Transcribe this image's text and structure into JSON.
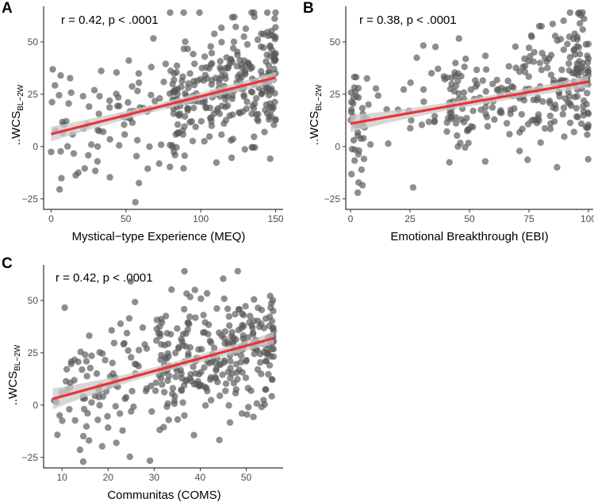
{
  "chart_data": [
    {
      "panel": "A",
      "type": "scatter",
      "annotation": "r = 0.42, p < .0001",
      "xlabel": "Mystical−type Experience (MEQ)",
      "ylabel_main": "..WCS",
      "ylabel_sub": "BL−2W",
      "xlim": [
        -5,
        155
      ],
      "ylim": [
        -30,
        67
      ],
      "xticks": [
        0,
        50,
        100,
        150
      ],
      "xticklabels": [
        "0",
        "50",
        "100",
        "150"
      ],
      "yticks": [
        -25,
        0,
        25,
        50
      ],
      "yticklabels": [
        "−25",
        "0",
        "25",
        "50"
      ],
      "fit": {
        "x0": 0,
        "y0": 6,
        "x1": 150,
        "y1": 33
      },
      "ci_width": {
        "left": 3.5,
        "center": 1.8,
        "right": 2.6
      },
      "point_count": 380,
      "point_seed": 11,
      "x_dist": "meq",
      "x_range": [
        0,
        150
      ]
    },
    {
      "panel": "B",
      "type": "scatter",
      "annotation": "r = 0.38, p < .0001",
      "xlabel": "Emotional Breakthrough (EBI)",
      "ylabel_main": "..WCS",
      "ylabel_sub": "BL−2W",
      "xlim": [
        -2,
        102
      ],
      "ylim": [
        -30,
        67
      ],
      "xticks": [
        0,
        25,
        50,
        75,
        100
      ],
      "xticklabels": [
        "0",
        "25",
        "50",
        "75",
        "100"
      ],
      "yticks": [
        -25,
        0,
        25,
        50
      ],
      "yticklabels": [
        "−25",
        "0",
        "25",
        "50"
      ],
      "fit": {
        "x0": 0,
        "y0": 11,
        "x1": 100,
        "y1": 31
      },
      "ci_width": {
        "left": 4.0,
        "center": 1.8,
        "right": 2.8
      },
      "point_count": 330,
      "point_seed": 23,
      "x_dist": "ebi",
      "x_range": [
        0,
        100
      ]
    },
    {
      "panel": "C",
      "type": "scatter",
      "annotation": "r = 0.42, p < .0001",
      "xlabel": "Communitas (COMS)",
      "ylabel_main": "..WCS",
      "ylabel_sub": "BL−2W",
      "xlim": [
        6,
        58
      ],
      "ylim": [
        -30,
        67
      ],
      "xticks": [
        10,
        20,
        30,
        40,
        50
      ],
      "xticklabels": [
        "10",
        "20",
        "30",
        "40",
        "50"
      ],
      "yticks": [
        -25,
        0,
        25,
        50
      ],
      "yticklabels": [
        "−25",
        "0",
        "25",
        "50"
      ],
      "fit": {
        "x0": 8,
        "y0": 3,
        "x1": 56,
        "y1": 32
      },
      "ci_width": {
        "left": 5.0,
        "center": 1.8,
        "right": 2.8
      },
      "point_count": 390,
      "point_seed": 37,
      "x_dist": "coms",
      "x_range": [
        8,
        56
      ]
    }
  ],
  "colors": {
    "point": "#595959",
    "fit_line": "#e8333a",
    "ci_band": "#c9c9c9",
    "axis": "#000000"
  }
}
